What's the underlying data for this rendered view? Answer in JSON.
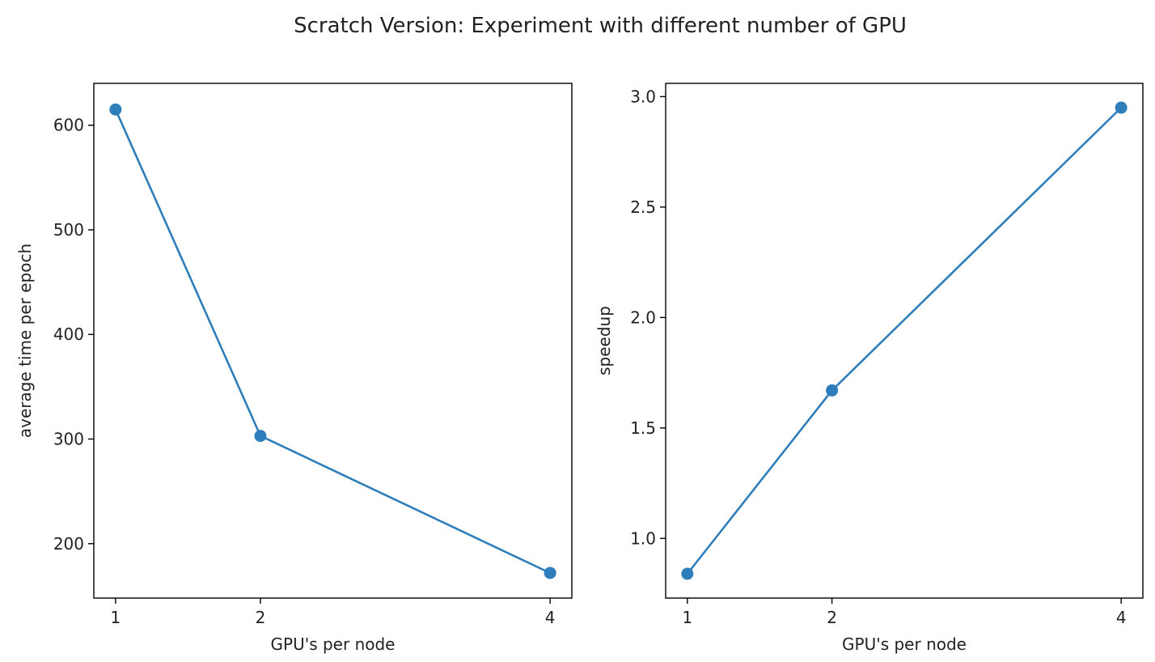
{
  "suptitle": "Scratch Version: Experiment with different number of GPU",
  "colors": {
    "series": "#2f7ebc",
    "axes": "#000000",
    "text": "#222222",
    "background": "#ffffff"
  },
  "chart_data": [
    {
      "type": "line",
      "xlabel": "GPU's per node",
      "ylabel": "average time per epoch",
      "x": [
        1,
        2,
        4
      ],
      "x_ticks": [
        1,
        2,
        4
      ],
      "y_ticks": [
        200,
        300,
        400,
        500,
        600
      ],
      "xlim": [
        0.85,
        4.15
      ],
      "ylim": [
        148,
        640
      ],
      "grid": false,
      "series": [
        {
          "values": [
            615,
            303,
            172
          ],
          "marker": "circle"
        }
      ]
    },
    {
      "type": "line",
      "xlabel": "GPU's per node",
      "ylabel": "speedup",
      "x": [
        1,
        2,
        4
      ],
      "x_ticks": [
        1,
        2,
        4
      ],
      "y_ticks": [
        1.0,
        1.5,
        2.0,
        2.5,
        3.0
      ],
      "xlim": [
        0.85,
        4.15
      ],
      "ylim": [
        0.73,
        3.06
      ],
      "grid": false,
      "series": [
        {
          "values": [
            0.84,
            1.67,
            2.95
          ],
          "marker": "circle"
        }
      ]
    }
  ]
}
